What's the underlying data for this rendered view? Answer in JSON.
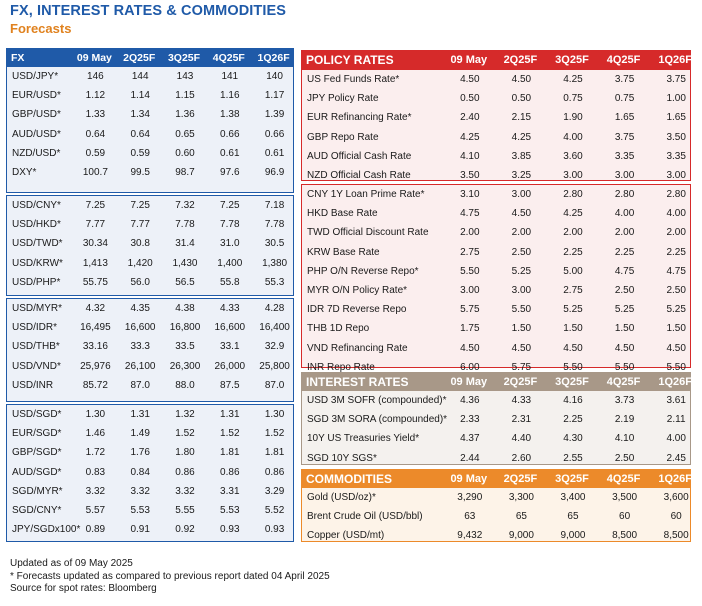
{
  "header": {
    "title": "FX, INTEREST RATES & COMMODITIES",
    "subtitle": "Forecasts"
  },
  "columns": [
    "09 May",
    "2Q25F",
    "3Q25F",
    "4Q25F",
    "1Q26F"
  ],
  "fx": {
    "label": "FX",
    "groups": [
      [
        [
          "USD/JPY*",
          "146",
          "144",
          "143",
          "141",
          "140"
        ],
        [
          "EUR/USD*",
          "1.12",
          "1.14",
          "1.15",
          "1.16",
          "1.17"
        ],
        [
          "GBP/USD*",
          "1.33",
          "1.34",
          "1.36",
          "1.38",
          "1.39"
        ],
        [
          "AUD/USD*",
          "0.64",
          "0.64",
          "0.65",
          "0.66",
          "0.66"
        ],
        [
          "NZD/USD*",
          "0.59",
          "0.59",
          "0.60",
          "0.61",
          "0.61"
        ],
        [
          "DXY*",
          "100.7",
          "99.5",
          "98.7",
          "97.6",
          "96.9"
        ]
      ],
      [
        [
          "USD/CNY*",
          "7.25",
          "7.25",
          "7.32",
          "7.25",
          "7.18"
        ],
        [
          "USD/HKD*",
          "7.77",
          "7.77",
          "7.78",
          "7.78",
          "7.78"
        ],
        [
          "USD/TWD*",
          "30.34",
          "30.8",
          "31.4",
          "31.0",
          "30.5"
        ],
        [
          "USD/KRW*",
          "1,413",
          "1,420",
          "1,430",
          "1,400",
          "1,380"
        ],
        [
          "USD/PHP*",
          "55.75",
          "56.0",
          "56.5",
          "55.8",
          "55.3"
        ]
      ],
      [
        [
          "USD/MYR*",
          "4.32",
          "4.35",
          "4.38",
          "4.33",
          "4.28"
        ],
        [
          "USD/IDR*",
          "16,495",
          "16,600",
          "16,800",
          "16,600",
          "16,400"
        ],
        [
          "USD/THB*",
          "33.16",
          "33.3",
          "33.5",
          "33.1",
          "32.9"
        ],
        [
          "USD/VND*",
          "25,976",
          "26,100",
          "26,300",
          "26,000",
          "25,800"
        ],
        [
          "USD/INR",
          "85.72",
          "87.0",
          "88.0",
          "87.5",
          "87.0"
        ]
      ],
      [
        [
          "USD/SGD*",
          "1.30",
          "1.31",
          "1.32",
          "1.31",
          "1.30"
        ],
        [
          "EUR/SGD*",
          "1.46",
          "1.49",
          "1.52",
          "1.52",
          "1.52"
        ],
        [
          "GBP/SGD*",
          "1.72",
          "1.76",
          "1.80",
          "1.81",
          "1.81"
        ],
        [
          "AUD/SGD*",
          "0.83",
          "0.84",
          "0.86",
          "0.86",
          "0.86"
        ],
        [
          "SGD/MYR*",
          "3.32",
          "3.32",
          "3.32",
          "3.31",
          "3.29"
        ],
        [
          "SGD/CNY*",
          "5.57",
          "5.53",
          "5.55",
          "5.53",
          "5.52"
        ],
        [
          "JPY/SGDx100*",
          "0.89",
          "0.91",
          "0.92",
          "0.93",
          "0.93"
        ]
      ]
    ]
  },
  "policy_rates": {
    "label": "POLICY RATES",
    "groups": [
      [
        [
          "US Fed Funds Rate*",
          "4.50",
          "4.50",
          "4.25",
          "3.75",
          "3.75"
        ],
        [
          "JPY Policy Rate",
          "0.50",
          "0.50",
          "0.75",
          "0.75",
          "1.00"
        ],
        [
          "EUR Refinancing Rate*",
          "2.40",
          "2.15",
          "1.90",
          "1.65",
          "1.65"
        ],
        [
          "GBP Repo Rate",
          "4.25",
          "4.25",
          "4.00",
          "3.75",
          "3.50"
        ],
        [
          "AUD Official Cash Rate",
          "4.10",
          "3.85",
          "3.60",
          "3.35",
          "3.35"
        ],
        [
          "NZD Official Cash Rate",
          "3.50",
          "3.25",
          "3.00",
          "3.00",
          "3.00"
        ]
      ],
      [
        [
          "CNY 1Y Loan Prime Rate*",
          "3.10",
          "3.00",
          "2.80",
          "2.80",
          "2.80"
        ],
        [
          "HKD Base Rate",
          "4.75",
          "4.50",
          "4.25",
          "4.00",
          "4.00"
        ],
        [
          "TWD Official Discount Rate",
          "2.00",
          "2.00",
          "2.00",
          "2.00",
          "2.00"
        ],
        [
          "KRW Base Rate",
          "2.75",
          "2.50",
          "2.25",
          "2.25",
          "2.25"
        ],
        [
          "PHP O/N Reverse Repo*",
          "5.50",
          "5.25",
          "5.00",
          "4.75",
          "4.75"
        ],
        [
          "MYR O/N Policy Rate*",
          "3.00",
          "3.00",
          "2.75",
          "2.50",
          "2.50"
        ],
        [
          "IDR 7D Reverse Repo",
          "5.75",
          "5.50",
          "5.25",
          "5.25",
          "5.25"
        ],
        [
          "THB 1D Repo",
          "1.75",
          "1.50",
          "1.50",
          "1.50",
          "1.50"
        ],
        [
          "VND Refinancing Rate",
          "4.50",
          "4.50",
          "4.50",
          "4.50",
          "4.50"
        ],
        [
          "INR Repo Rate",
          "6.00",
          "5.75",
          "5.50",
          "5.50",
          "5.50"
        ]
      ]
    ]
  },
  "interest_rates": {
    "label": "INTEREST RATES",
    "rows": [
      [
        "USD 3M SOFR (compounded)*",
        "4.36",
        "4.33",
        "4.16",
        "3.73",
        "3.61"
      ],
      [
        "SGD 3M SORA (compounded)*",
        "2.33",
        "2.31",
        "2.25",
        "2.19",
        "2.11"
      ],
      [
        "10Y US Treasuries Yield*",
        "4.37",
        "4.40",
        "4.30",
        "4.10",
        "4.00"
      ],
      [
        "SGD 10Y SGS*",
        "2.44",
        "2.60",
        "2.55",
        "2.50",
        "2.45"
      ]
    ]
  },
  "commodities": {
    "label": "COMMODITIES",
    "rows": [
      [
        "Gold (USD/oz)*",
        "3,290",
        "3,300",
        "3,400",
        "3,500",
        "3,600"
      ],
      [
        "Brent Crude Oil (USD/bbl)",
        "63",
        "65",
        "65",
        "60",
        "60"
      ],
      [
        "Copper (USD/mt)",
        "9,432",
        "9,000",
        "9,000",
        "8,500",
        "8,500"
      ]
    ]
  },
  "notes": [
    "Updated as of 09 May 2025",
    "* Forecasts updated as compared to previous report dated 04 April 2025",
    "Source for spot rates: Bloomberg"
  ],
  "colors": {
    "fx_blue": "#1f5aa8",
    "policy_red": "#d62a2a",
    "interest_taupe": "#a89888",
    "commodities_orange": "#ec8a2a",
    "forecasts_orange": "#e0821f"
  }
}
